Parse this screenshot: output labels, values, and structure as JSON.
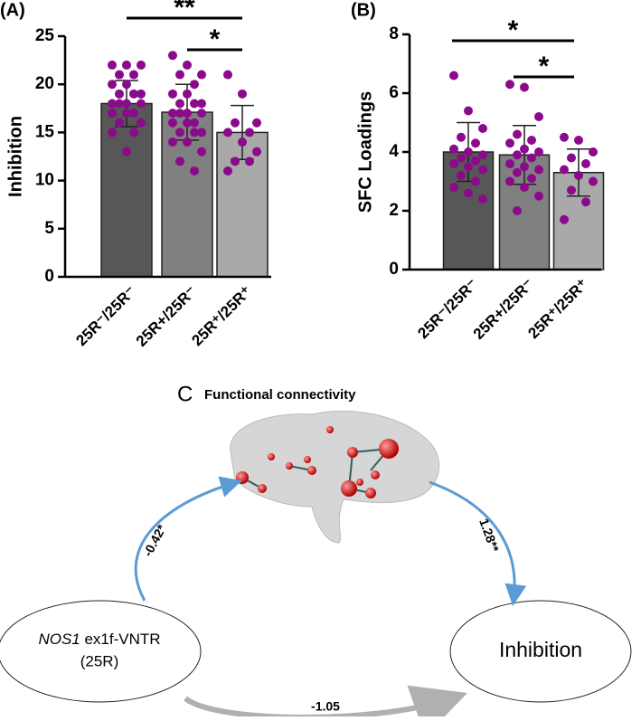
{
  "chart_data": [
    {
      "type": "bar",
      "panel_label": "(A)",
      "ylabel": "Inhibition",
      "categories": [
        "25R⁻/25R⁻",
        "25R+/25R⁻",
        "25R⁺/25R⁺"
      ],
      "values": [
        18,
        17.1,
        15
      ],
      "errors": [
        2.4,
        2.9,
        2.8
      ],
      "colors": [
        "#575757",
        "#808080",
        "#a9a9a9"
      ],
      "point_color": "#8b0a8b",
      "points": [
        [
          22,
          22,
          22,
          21,
          21,
          20,
          20,
          19,
          19,
          19,
          18,
          18,
          18,
          18,
          17,
          17,
          17,
          16,
          16,
          15,
          15,
          13
        ],
        [
          23,
          22,
          21,
          21,
          20,
          19,
          19,
          18,
          18,
          18,
          17,
          17,
          17,
          17,
          16,
          16,
          16,
          15,
          15,
          15,
          14,
          14,
          13,
          12,
          11
        ],
        [
          21,
          19,
          16,
          16,
          15,
          15,
          14,
          13,
          12,
          12,
          11
        ]
      ],
      "ylim": [
        0,
        25
      ],
      "yticks": [
        0,
        5,
        10,
        15,
        20,
        25
      ],
      "significance": [
        "**",
        "*"
      ]
    },
    {
      "type": "bar",
      "panel_label": "(B)",
      "ylabel": "SFC Loadings",
      "categories": [
        "25R⁻/25R⁻",
        "25R+/25R⁻",
        "25R⁺/25R⁺"
      ],
      "values": [
        4.0,
        3.9,
        3.3
      ],
      "errors": [
        1.0,
        1.0,
        0.8
      ],
      "colors": [
        "#575757",
        "#808080",
        "#a9a9a9"
      ],
      "point_color": "#8b0a8b",
      "points": [
        [
          6.6,
          5.4,
          4.8,
          4.5,
          4.3,
          4.1,
          4.0,
          3.9,
          3.8,
          3.7,
          3.6,
          3.5,
          3.4,
          3.2,
          3.0,
          2.8,
          2.6,
          2.4
        ],
        [
          6.3,
          6.2,
          5.2,
          4.6,
          4.4,
          4.3,
          4.1,
          4.0,
          3.9,
          3.8,
          3.6,
          3.5,
          3.4,
          3.3,
          3.1,
          3.0,
          2.8,
          2.5,
          2.0
        ],
        [
          4.5,
          4.4,
          4.0,
          3.8,
          3.6,
          3.4,
          3.2,
          3.0,
          2.7,
          2.3,
          1.7
        ]
      ],
      "ylim": [
        0,
        8
      ],
      "yticks": [
        0,
        2,
        4,
        6,
        8
      ],
      "significance": [
        "*",
        "*"
      ]
    }
  ],
  "diagram": {
    "panel_label": "C",
    "title": "Functional connectivity",
    "left_node": {
      "italic": "NOS1",
      "text": "ex1f-VNTR",
      "line2": "(25R)"
    },
    "right_node": "Inhibition",
    "path_a": "-0.42*",
    "path_b": "1.28**",
    "path_c": "-1.05"
  }
}
